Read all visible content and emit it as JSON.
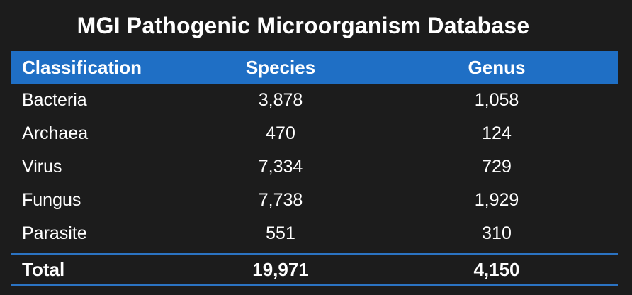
{
  "title": "MGI Pathogenic Microorganism Database",
  "columns": [
    "Classification",
    "Species",
    "Genus"
  ],
  "rows": [
    {
      "classification": "Bacteria",
      "species": "3,878",
      "genus": "1,058"
    },
    {
      "classification": "Archaea",
      "species": "470",
      "genus": "124"
    },
    {
      "classification": "Virus",
      "species": "7,334",
      "genus": "729"
    },
    {
      "classification": "Fungus",
      "species": "7,738",
      "genus": "1,929"
    },
    {
      "classification": "Parasite",
      "species": "551",
      "genus": "310"
    }
  ],
  "total": {
    "label": "Total",
    "species": "19,971",
    "genus": "4,150"
  },
  "colors": {
    "background": "#1c1c1c",
    "header_band": "#1f6fc5",
    "rule": "#2b73c2",
    "text": "#ffffff"
  }
}
